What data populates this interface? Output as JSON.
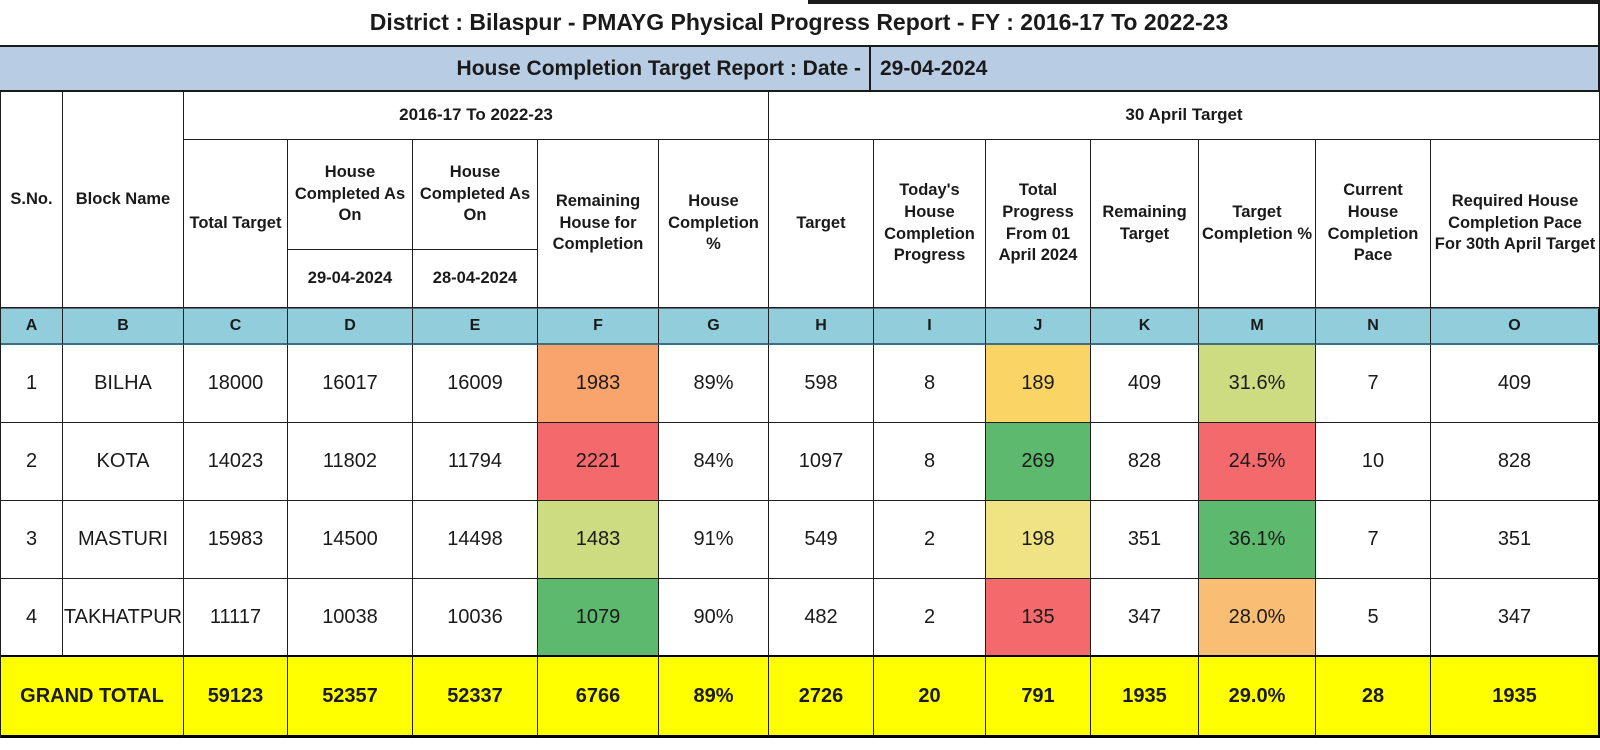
{
  "colors": {
    "subtitle_bg": "#B8CCE4",
    "letter_row_bg": "#92CDDC",
    "grand_total_bg": "#FFFF00",
    "scale_red": "#F4696C",
    "scale_orange": "#F9A46D",
    "scale_gold": "#FAD565",
    "scale_pale_yellow": "#F0E384",
    "scale_yellow_green": "#CDDC80",
    "scale_green": "#5CB96D",
    "scale_light_orange": "#F9BD73"
  },
  "chart_data": {
    "type": "table",
    "title": "District : Bilaspur - PMAYG Physical Progress Report  - FY : 2016-17 To 2022-23",
    "subtitle_label": "House Completion Target Report : Date  -",
    "subtitle_date": "29-04-2024",
    "group_headers": [
      "2016-17 To 2022-23",
      "30 April Target"
    ],
    "columns": [
      {
        "letter": "A",
        "header": "S.No."
      },
      {
        "letter": "B",
        "header": "Block Name"
      },
      {
        "letter": "C",
        "header": "Total Target"
      },
      {
        "letter": "D",
        "header": "House Completed As On",
        "sub": "29-04-2024"
      },
      {
        "letter": "E",
        "header": "House Completed As On",
        "sub": "28-04-2024"
      },
      {
        "letter": "F",
        "header": "Remaining House for Completion"
      },
      {
        "letter": "G",
        "header": "House Completion %"
      },
      {
        "letter": "H",
        "header": "Target"
      },
      {
        "letter": "I",
        "header": "Today's House Completion Progress"
      },
      {
        "letter": "J",
        "header": "Total Progress From 01 April 2024"
      },
      {
        "letter": "K",
        "header": "Remaining Target"
      },
      {
        "letter": "M",
        "header": "Target Completion %"
      },
      {
        "letter": "N",
        "header": "Current House Completion Pace"
      },
      {
        "letter": "O",
        "header": "Required House Completion Pace For 30th April Target"
      }
    ],
    "rows": [
      {
        "sno": "1",
        "block": "BILHA",
        "c": "18000",
        "d": "16017",
        "e": "16009",
        "f": "1983",
        "f_bg": "#F9A46D",
        "g": "89%",
        "h": "598",
        "i": "8",
        "j": "189",
        "j_bg": "#FAD565",
        "k": "409",
        "m": "31.6%",
        "m_bg": "#CDDC80",
        "n": "7",
        "o": "409"
      },
      {
        "sno": "2",
        "block": "KOTA",
        "c": "14023",
        "d": "11802",
        "e": "11794",
        "f": "2221",
        "f_bg": "#F4696C",
        "g": "84%",
        "h": "1097",
        "i": "8",
        "j": "269",
        "j_bg": "#5CB96D",
        "k": "828",
        "m": "24.5%",
        "m_bg": "#F4696C",
        "n": "10",
        "o": "828"
      },
      {
        "sno": "3",
        "block": "MASTURI",
        "c": "15983",
        "d": "14500",
        "e": "14498",
        "f": "1483",
        "f_bg": "#CDDC80",
        "g": "91%",
        "h": "549",
        "i": "2",
        "j": "198",
        "j_bg": "#F0E384",
        "k": "351",
        "m": "36.1%",
        "m_bg": "#5CB96D",
        "n": "7",
        "o": "351"
      },
      {
        "sno": "4",
        "block": "TAKHATPUR",
        "c": "11117",
        "d": "10038",
        "e": "10036",
        "f": "1079",
        "f_bg": "#5CB96D",
        "g": "90%",
        "h": "482",
        "i": "2",
        "j": "135",
        "j_bg": "#F4696C",
        "k": "347",
        "m": "28.0%",
        "m_bg": "#F9BD73",
        "n": "5",
        "o": "347"
      }
    ],
    "grand_total": {
      "label": "GRAND TOTAL",
      "c": "59123",
      "d": "52357",
      "e": "52337",
      "f": "6766",
      "g": "89%",
      "h": "2726",
      "i": "20",
      "j": "791",
      "k": "1935",
      "m": "29.0%",
      "n": "28",
      "o": "1935"
    }
  }
}
